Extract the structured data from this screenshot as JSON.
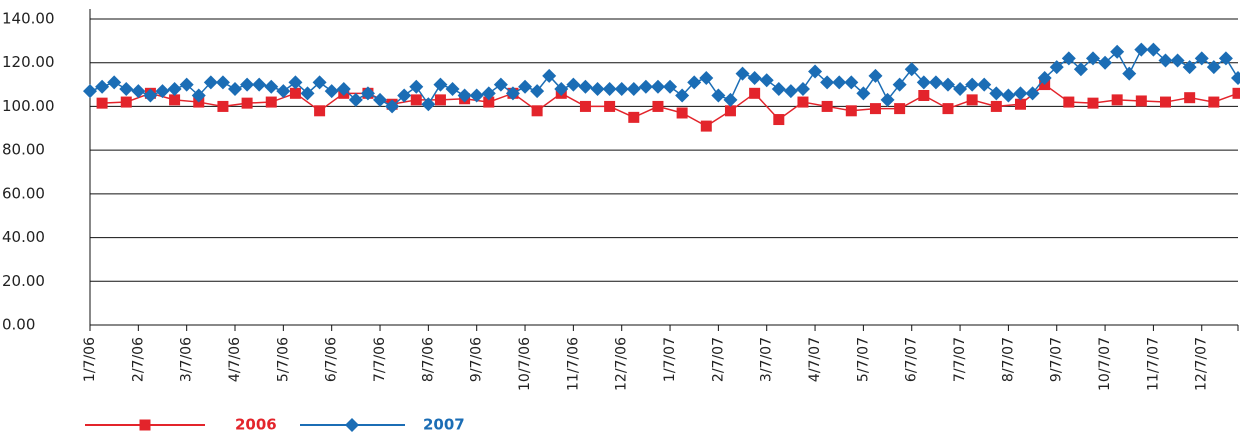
{
  "chart_data": {
    "type": "line",
    "xlim": [
      0,
      23.75
    ],
    "xticks": [
      {
        "value": 0,
        "label": "1/7/06"
      },
      {
        "value": 1,
        "label": "2/7/06"
      },
      {
        "value": 2,
        "label": "3/7/06"
      },
      {
        "value": 3,
        "label": "4/7/06"
      },
      {
        "value": 4,
        "label": "5/7/06"
      },
      {
        "value": 5,
        "label": "6/7/06"
      },
      {
        "value": 6,
        "label": "7/7/06"
      },
      {
        "value": 7,
        "label": "8/7/06"
      },
      {
        "value": 8,
        "label": "9/7/06"
      },
      {
        "value": 9,
        "label": "10/7/06"
      },
      {
        "value": 10,
        "label": "11/7/06"
      },
      {
        "value": 11,
        "label": "12/7/06"
      },
      {
        "value": 12,
        "label": "1/7/07"
      },
      {
        "value": 13,
        "label": "2/7/07"
      },
      {
        "value": 14,
        "label": "3/7/07"
      },
      {
        "value": 15,
        "label": "4/7/07"
      },
      {
        "value": 16,
        "label": "5/7/07"
      },
      {
        "value": 17,
        "label": "6/7/07"
      },
      {
        "value": 18,
        "label": "7/7/07"
      },
      {
        "value": 19,
        "label": "8/7/07"
      },
      {
        "value": 20,
        "label": "9/7/07"
      },
      {
        "value": 21,
        "label": "10/7/07"
      },
      {
        "value": 22,
        "label": "11/7/07"
      },
      {
        "value": 23,
        "label": "12/7/07"
      }
    ],
    "ylim": [
      0,
      140
    ],
    "yticks": [
      {
        "value": 0,
        "label": "0.00"
      },
      {
        "value": 20,
        "label": "20.00"
      },
      {
        "value": 40,
        "label": "40.00"
      },
      {
        "value": 60,
        "label": "60.00"
      },
      {
        "value": 80,
        "label": "80.00"
      },
      {
        "value": 100,
        "label": "100.00"
      },
      {
        "value": 120,
        "label": "120.00"
      },
      {
        "value": 140,
        "label": "140.00"
      }
    ],
    "grid": true,
    "series": [
      {
        "name": "2006",
        "color": "#e3242b",
        "marker": "square",
        "x": [
          0.25,
          0.75,
          1.25,
          1.75,
          2.25,
          2.75,
          3.25,
          3.75,
          4.25,
          4.75,
          5.25,
          5.75,
          6.25,
          6.75,
          7.25,
          7.75,
          8.25,
          8.75,
          9.25,
          9.75,
          10.25,
          10.75,
          11.25,
          11.75,
          12.25,
          12.75,
          13.25,
          13.75,
          14.25,
          14.75,
          15.25,
          15.75,
          16.25,
          16.75,
          17.25,
          17.75,
          18.25,
          18.75,
          19.25,
          19.75,
          20.25,
          20.75,
          21.25,
          21.75,
          22.25,
          22.75,
          23.25,
          23.75
        ],
        "values": [
          101.5,
          102,
          106,
          103,
          102,
          100,
          101.5,
          102,
          106,
          98,
          106,
          106,
          101,
          103,
          103,
          103.5,
          102,
          106,
          98,
          106,
          100,
          100,
          95,
          100,
          97,
          91,
          98,
          106,
          94,
          102,
          100,
          98,
          99,
          99,
          105,
          99,
          103,
          100,
          101,
          110,
          102,
          101.5,
          103,
          102.5,
          102,
          104,
          102,
          106
        ]
      },
      {
        "name": "2007",
        "color": "#1b6db5",
        "marker": "diamond",
        "x": [
          0,
          0.25,
          0.5,
          0.75,
          1,
          1.25,
          1.5,
          1.75,
          2,
          2.25,
          2.5,
          2.75,
          3,
          3.25,
          3.5,
          3.75,
          4,
          4.25,
          4.5,
          4.75,
          5,
          5.25,
          5.5,
          5.75,
          6,
          6.25,
          6.5,
          6.75,
          7,
          7.25,
          7.5,
          7.75,
          8,
          8.25,
          8.5,
          8.75,
          9,
          9.25,
          9.5,
          9.75,
          10,
          10.25,
          10.5,
          10.75,
          11,
          11.25,
          11.5,
          11.75,
          12,
          12.25,
          12.5,
          12.75,
          13,
          13.25,
          13.5,
          13.75,
          14,
          14.25,
          14.5,
          14.75,
          15,
          15.25,
          15.5,
          15.75,
          16,
          16.25,
          16.5,
          16.75,
          17,
          17.25,
          17.5,
          17.75,
          18,
          18.25,
          18.5,
          18.75,
          19,
          19.25,
          19.5,
          19.75,
          20,
          20.25,
          20.5,
          20.75,
          21,
          21.25,
          21.5,
          21.75,
          22,
          22.25,
          22.5,
          22.75,
          23,
          23.25,
          23.5,
          23.75
        ],
        "values": [
          107,
          109,
          111,
          108,
          107,
          105,
          107,
          108,
          110,
          105,
          111,
          111,
          108,
          110,
          110,
          109,
          107,
          111,
          106,
          111,
          107,
          108,
          103,
          106,
          103,
          100,
          105,
          109,
          101,
          110,
          108,
          105,
          105,
          106,
          110,
          106,
          109,
          107,
          114,
          108,
          110,
          109,
          108,
          108,
          108,
          108,
          109,
          109,
          109,
          105,
          111,
          113,
          105,
          103,
          115,
          113,
          112,
          108,
          107,
          108,
          116,
          111,
          111,
          111,
          106,
          114,
          103,
          110,
          117,
          111,
          111,
          110,
          108,
          110,
          110,
          106,
          105,
          106,
          106,
          113,
          118,
          122,
          117,
          122,
          120,
          125,
          115,
          126,
          126,
          121,
          121,
          118,
          122,
          118,
          122,
          113
        ]
      }
    ]
  }
}
